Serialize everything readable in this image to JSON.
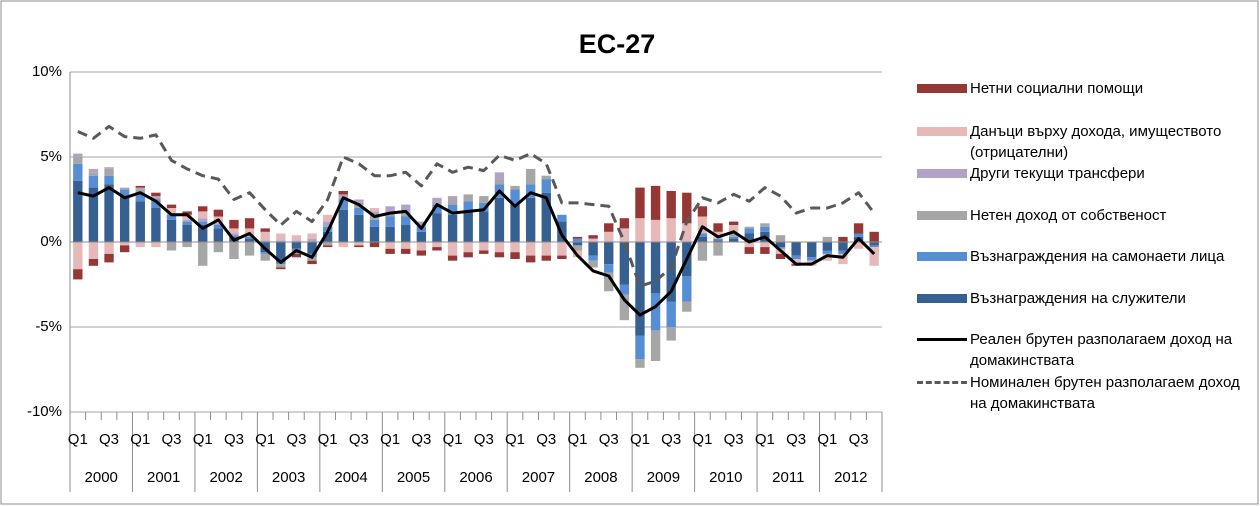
{
  "chart_data": {
    "type": "bar",
    "title": "ЕС-27",
    "categories": [
      "Q1",
      null,
      "Q3",
      null,
      "Q1",
      null,
      "Q3",
      null,
      "Q1",
      null,
      "Q3",
      null,
      "Q1",
      null,
      "Q3",
      null,
      "Q1",
      null,
      "Q3",
      null,
      "Q1",
      null,
      "Q3",
      null,
      "Q1",
      null,
      "Q3",
      null,
      "Q1",
      null,
      "Q3",
      null,
      "Q1",
      null,
      "Q3",
      null,
      "Q1",
      null,
      "Q3",
      null,
      "Q1",
      null,
      "Q3",
      null,
      "Q1",
      null,
      "Q3",
      null,
      "Q1",
      null,
      "Q3",
      null
    ],
    "years": [
      "2000",
      "2001",
      "2002",
      "2003",
      "2004",
      "2005",
      "2006",
      "2007",
      "2008",
      "2009",
      "2010",
      "2011",
      "2012"
    ],
    "ylim": [
      -10,
      10
    ],
    "yticks": [
      {
        "value": -10,
        "label": "-10%"
      },
      {
        "value": -5,
        "label": "-5%"
      },
      {
        "value": 0,
        "label": "0%"
      },
      {
        "value": 5,
        "label": "5%"
      },
      {
        "value": 10,
        "label": "10%"
      }
    ],
    "grid": true,
    "stacked": true,
    "series": [
      {
        "name": "Нетни социални помощи",
        "kind": "bar",
        "color": "#953735",
        "values": [
          -0.6,
          -0.4,
          -0.5,
          -0.4,
          0.1,
          0.2,
          0.2,
          0.2,
          0.3,
          0.4,
          0.5,
          0.6,
          0.2,
          -0.1,
          -0.2,
          -0.2,
          -0.1,
          0.2,
          -0.1,
          -0.3,
          -0.3,
          -0.3,
          -0.3,
          -0.2,
          -0.3,
          -0.3,
          -0.2,
          -0.3,
          -0.4,
          -0.4,
          -0.3,
          -0.2,
          0.1,
          0.2,
          0.5,
          0.6,
          1.8,
          2.0,
          1.6,
          1.8,
          0.6,
          0.5,
          0.2,
          -0.4,
          -0.4,
          -0.3,
          -0.1,
          0.0,
          0.0,
          0.3,
          0.6,
          0.6
        ]
      },
      {
        "name": "Данъци върху дохода, имуществото (отрицателни)",
        "kind": "bar",
        "color": "#e6b9b8",
        "values": [
          -1.6,
          -1.0,
          -0.7,
          -0.2,
          -0.3,
          -0.3,
          0.3,
          0.3,
          0.4,
          0.4,
          0.3,
          0.4,
          0.5,
          0.4,
          0.3,
          0.3,
          0.4,
          -0.3,
          -0.2,
          0.2,
          -0.4,
          -0.4,
          -0.5,
          -0.3,
          -0.8,
          -0.6,
          -0.5,
          -0.6,
          -0.6,
          -0.8,
          -0.8,
          -0.8,
          -0.4,
          0.2,
          0.6,
          0.8,
          1.4,
          1.3,
          1.4,
          1.1,
          1.0,
          0.4,
          0.5,
          -0.3,
          -0.3,
          -0.3,
          -0.3,
          -0.3,
          -0.4,
          -0.6,
          -0.4,
          -1.1
        ]
      },
      {
        "name": "Други текущи трансфери",
        "kind": "bar",
        "color": "#b3a2c7",
        "values": [
          0.2,
          0.2,
          0.1,
          0.1,
          0.1,
          0.1,
          0.1,
          0.1,
          0.2,
          0.1,
          0.1,
          0.1,
          0.1,
          0.1,
          0.1,
          0.2,
          0.3,
          0.2,
          0.2,
          0.2,
          0.4,
          0.4,
          0.2,
          0.2,
          0.2,
          0.0,
          0.0,
          0.4,
          0.0,
          0.0,
          0.0,
          0.0,
          0.0,
          0.0,
          0.0,
          0.0,
          0.0,
          0.0,
          0.0,
          0.0,
          0.0,
          0.0,
          0.0,
          0.0,
          0.0,
          0.0,
          0.0,
          0.0,
          0.0,
          0.0,
          0.0,
          0.0
        ]
      },
      {
        "name": "Нетен доход от собственост",
        "kind": "bar",
        "color": "#a6a6a6",
        "values": [
          0.4,
          0.2,
          0.4,
          0.0,
          0.2,
          0.1,
          -0.5,
          -0.3,
          -1.4,
          -0.6,
          -1.0,
          -0.8,
          -0.4,
          -0.2,
          -0.2,
          -0.2,
          -0.2,
          0.1,
          0.3,
          0.3,
          0.2,
          0.3,
          0.1,
          0.2,
          0.3,
          0.4,
          0.4,
          0.3,
          0.2,
          0.9,
          0.2,
          0.0,
          -0.3,
          -0.4,
          -1.1,
          -1.5,
          -0.5,
          -1.8,
          -0.8,
          -0.6,
          -1.1,
          -0.8,
          0.2,
          0.1,
          0.2,
          0.4,
          0.0,
          0.0,
          0.3,
          0.0,
          0.0,
          0.0
        ]
      },
      {
        "name": "Възнаграждения на самонаети лица",
        "kind": "bar",
        "color": "#558ed5",
        "values": [
          1.0,
          0.7,
          0.5,
          0.4,
          0.5,
          0.5,
          0.3,
          0.2,
          0.2,
          0.2,
          0.1,
          0.1,
          -0.1,
          -0.1,
          -0.1,
          -0.2,
          0.3,
          0.6,
          0.4,
          0.4,
          0.6,
          0.5,
          0.3,
          0.5,
          0.6,
          0.6,
          0.5,
          0.8,
          0.9,
          0.8,
          0.8,
          0.4,
          0.2,
          -0.3,
          -0.5,
          -0.6,
          -1.4,
          -2.2,
          -1.5,
          -1.5,
          0.2,
          0.1,
          0.1,
          0.3,
          0.3,
          -0.1,
          -0.2,
          -0.2,
          -0.2,
          -0.2,
          0.2,
          -0.1
        ]
      },
      {
        "name": "Възнаграждения на служители",
        "kind": "bar",
        "color": "#376092",
        "values": [
          3.6,
          3.2,
          3.4,
          2.7,
          2.4,
          2.0,
          1.3,
          1.0,
          1.0,
          0.8,
          0.3,
          0.2,
          -0.6,
          -1.2,
          -0.4,
          -0.7,
          0.6,
          1.9,
          1.6,
          0.9,
          0.9,
          1.0,
          0.6,
          1.7,
          1.6,
          1.8,
          1.8,
          2.6,
          2.2,
          2.6,
          2.9,
          1.2,
          -0.2,
          -0.8,
          -1.3,
          -2.5,
          -5.5,
          -3.0,
          -3.5,
          -2.0,
          0.3,
          0.1,
          0.2,
          0.5,
          0.6,
          -0.3,
          -0.8,
          -0.9,
          -0.5,
          -0.5,
          0.3,
          -0.2
        ]
      },
      {
        "name": "Реален брутен разполагаем доход на домакинствата",
        "kind": "line",
        "color": "#000000",
        "values": [
          2.9,
          2.7,
          3.2,
          2.6,
          2.9,
          2.4,
          1.6,
          1.6,
          0.8,
          1.3,
          0.1,
          0.5,
          -0.4,
          -1.2,
          -0.5,
          -0.9,
          0.6,
          2.6,
          2.2,
          1.5,
          1.7,
          1.8,
          0.8,
          2.2,
          1.7,
          1.8,
          1.9,
          3.0,
          2.1,
          2.9,
          2.6,
          0.4,
          -0.8,
          -1.7,
          -2.0,
          -3.4,
          -4.3,
          -3.8,
          -2.9,
          -1.0,
          0.9,
          0.3,
          0.6,
          0.0,
          0.3,
          -0.5,
          -1.3,
          -1.3,
          -0.8,
          -0.9,
          0.2,
          -0.7
        ]
      },
      {
        "name": "Номинален брутен разполагаем доход на домакинствата",
        "kind": "line",
        "dashed": true,
        "color": "#595959",
        "values": [
          6.5,
          6.1,
          6.8,
          6.2,
          6.1,
          6.3,
          4.8,
          4.3,
          3.9,
          3.7,
          2.5,
          2.9,
          1.9,
          1.0,
          1.8,
          1.2,
          2.5,
          5.0,
          4.6,
          3.9,
          3.9,
          4.1,
          3.3,
          4.6,
          4.1,
          4.4,
          4.2,
          5.1,
          4.8,
          5.2,
          4.6,
          2.3,
          2.3,
          2.2,
          2.1,
          0.0,
          -2.6,
          -2.3,
          -1.5,
          1.2,
          2.6,
          2.3,
          2.8,
          2.4,
          3.2,
          2.7,
          1.7,
          2.0,
          2.0,
          2.3,
          2.9,
          1.7
        ]
      }
    ]
  }
}
